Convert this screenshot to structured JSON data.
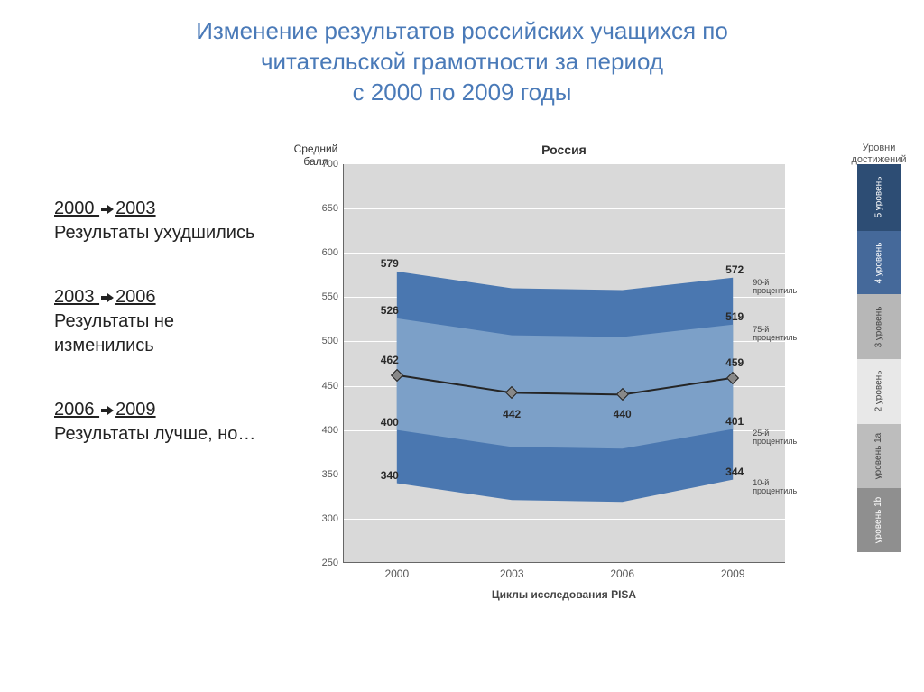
{
  "title_line1": "Изменение результатов российских учащихся по",
  "title_line2": "читательской грамотности за период",
  "title_line3": "с 2000 по 2009 годы",
  "periods": [
    {
      "range_from": "2000",
      "range_to": "2003",
      "text": "Результаты ухудшились"
    },
    {
      "range_from": "2003",
      "range_to": "2006",
      "text": "Результаты не изменились"
    },
    {
      "range_from": "2006",
      "range_to": "2009",
      "text": "Результаты лучше, но…"
    }
  ],
  "chart": {
    "type": "area-band-line",
    "y_title": "Средний балл",
    "title": "Россия",
    "x_title": "Циклы исследования PISA",
    "plot_bg": "#d9d9d9",
    "grid_color": "#ffffff",
    "ylim": [
      250,
      700
    ],
    "ytick_step": 50,
    "years": [
      "2000",
      "2003",
      "2006",
      "2009"
    ],
    "x_positions_pct": [
      12,
      38,
      63,
      88
    ],
    "bands": [
      {
        "name": "p10-p90",
        "color": "#4a77b0",
        "upper": [
          579,
          560,
          558,
          572
        ],
        "lower": [
          340,
          321,
          319,
          344
        ]
      },
      {
        "name": "p25-p75",
        "color": "#7ca0c8",
        "upper": [
          526,
          507,
          505,
          519
        ],
        "lower": [
          400,
          381,
          379,
          401
        ]
      }
    ],
    "center_line": {
      "color": "#252525",
      "stroke_width": 2,
      "marker_fill": "#888888",
      "marker_border": "#222222",
      "values": [
        462,
        442,
        440,
        459
      ]
    },
    "labels_left": [
      {
        "text": "579",
        "y": 579
      },
      {
        "text": "526",
        "y": 526
      },
      {
        "text": "462",
        "y": 470
      },
      {
        "text": "400",
        "y": 400
      },
      {
        "text": "340",
        "y": 340
      }
    ],
    "labels_mid": [
      {
        "text": "442",
        "x_idx": 1,
        "y": 430
      },
      {
        "text": "440",
        "x_idx": 2,
        "y": 430
      }
    ],
    "labels_right": [
      {
        "text": "572",
        "y": 572
      },
      {
        "text": "519",
        "y": 519
      },
      {
        "text": "459",
        "y": 467
      },
      {
        "text": "401",
        "y": 401
      },
      {
        "text": "344",
        "y": 344
      }
    ],
    "percentile_labels": [
      {
        "text": "90-й процентиль",
        "y": 565
      },
      {
        "text": "75-й процентиль",
        "y": 512
      },
      {
        "text": "25-й процентиль",
        "y": 395
      },
      {
        "text": "10-й процентиль",
        "y": 339
      }
    ]
  },
  "levels": {
    "title": "Уровни достижений",
    "strip": [
      {
        "label": "5 уровень",
        "color": "#2d4d74",
        "text_dark": false,
        "from": 625,
        "to": 700
      },
      {
        "label": "4 уровень",
        "color": "#45699a",
        "text_dark": false,
        "from": 553,
        "to": 625
      },
      {
        "label": "3 уровень",
        "color": "#b7b7b7",
        "text_dark": true,
        "from": 480,
        "to": 553
      },
      {
        "label": "2 уровень",
        "color": "#e8e8e8",
        "text_dark": true,
        "from": 407,
        "to": 480
      },
      {
        "label": "уровень 1а",
        "color": "#bdbdbd",
        "text_dark": true,
        "from": 335,
        "to": 407
      },
      {
        "label": "уровень 1b",
        "color": "#8f8f8f",
        "text_dark": false,
        "from": 262,
        "to": 335
      }
    ]
  }
}
